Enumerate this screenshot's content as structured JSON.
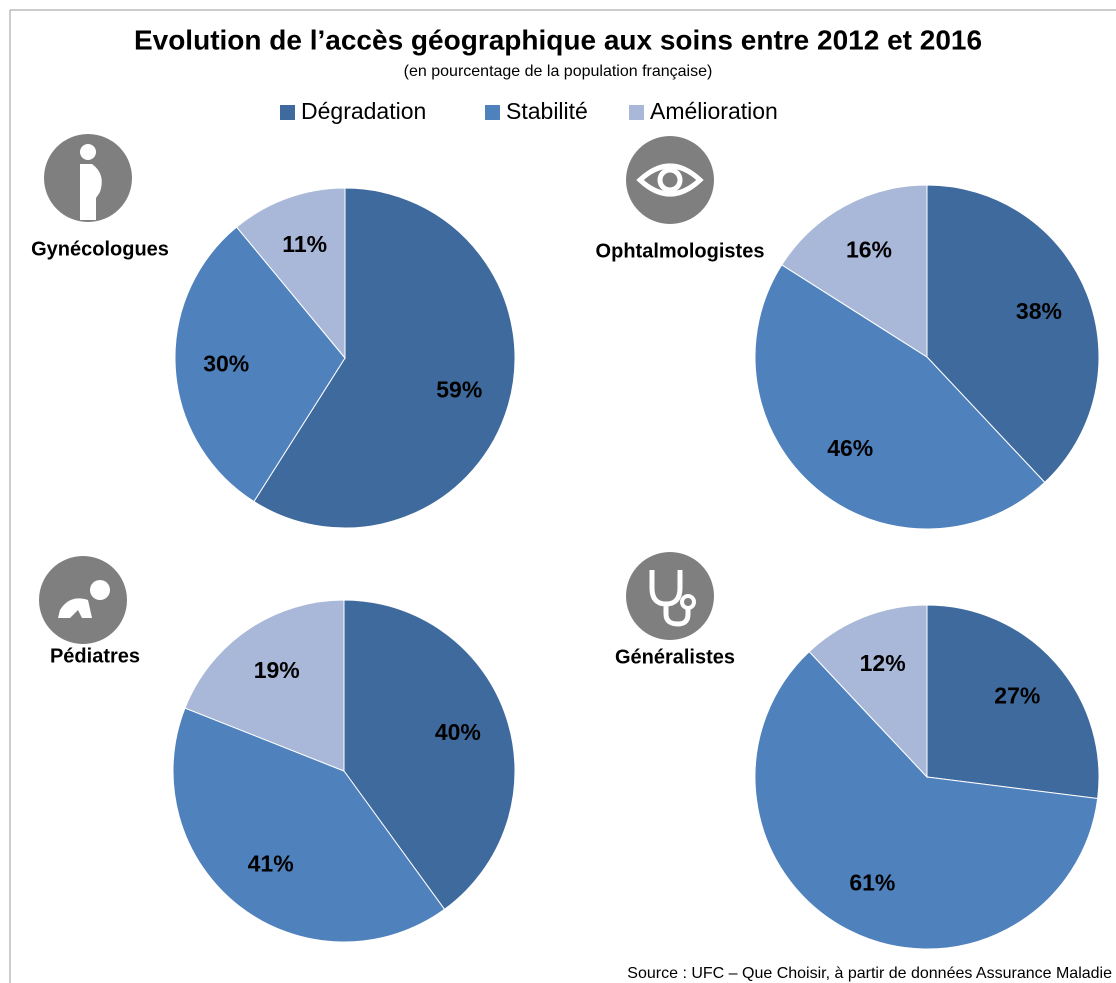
{
  "title": "Evolution de l’accès géographique aux soins entre 2012 et 2016",
  "subtitle": "(en pourcentage de la population française)",
  "source": "Source : UFC – Que Choisir, à partir de données Assurance Maladie",
  "chart_data": [
    {
      "type": "pie",
      "title": "Gynécologues",
      "categories": [
        "Dégradation",
        "Stabilité",
        "Amélioration"
      ],
      "values": [
        59,
        30,
        11
      ],
      "value_labels": [
        "59%",
        "30%",
        "11%"
      ],
      "colors": [
        "#3f6a9e",
        "#4f81bd",
        "#a9b8d8"
      ]
    },
    {
      "type": "pie",
      "title": "Ophtalmologistes",
      "categories": [
        "Dégradation",
        "Stabilité",
        "Amélioration"
      ],
      "values": [
        38,
        46,
        16
      ],
      "value_labels": [
        "38%",
        "46%",
        "16%"
      ],
      "colors": [
        "#3f6a9e",
        "#4f81bd",
        "#a9b8d8"
      ]
    },
    {
      "type": "pie",
      "title": "Pédiatres",
      "categories": [
        "Dégradation",
        "Stabilité",
        "Amélioration"
      ],
      "values": [
        40,
        41,
        19
      ],
      "value_labels": [
        "40%",
        "41%",
        "19%"
      ],
      "colors": [
        "#3f6a9e",
        "#4f81bd",
        "#a9b8d8"
      ]
    },
    {
      "type": "pie",
      "title": "Généralistes",
      "categories": [
        "Dégradation",
        "Stabilité",
        "Amélioration"
      ],
      "values": [
        27,
        61,
        12
      ],
      "value_labels": [
        "27%",
        "61%",
        "12%"
      ],
      "colors": [
        "#3f6a9e",
        "#4f81bd",
        "#a9b8d8"
      ]
    }
  ]
}
